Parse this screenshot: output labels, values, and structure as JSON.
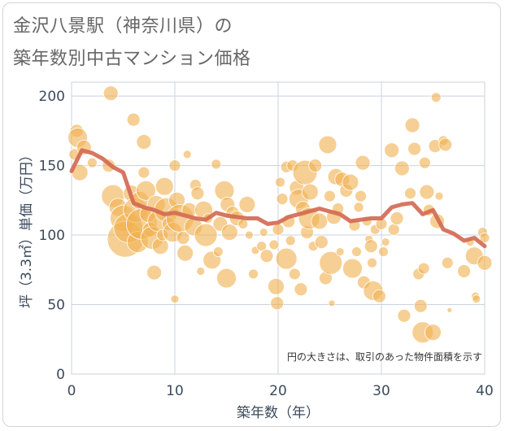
{
  "chart_title": {
    "line1": "金沢八景駅（神奈川県）の",
    "line2": "築年数別中古マンション価格"
  },
  "note": "円の大きさは、取引のあった物件面積を示す",
  "colors": {
    "bubble": "#f0b253",
    "line": "#d46a55",
    "grid": "#c9d3de",
    "axis_text": "#3b4a5c"
  },
  "chart_data": {
    "type": "scatter",
    "xlabel": "築年数（年）",
    "ylabel": "坪（3.3㎡）単価（万円）",
    "xlim": [
      0,
      40
    ],
    "ylim": [
      0,
      210
    ],
    "xticks": [
      0,
      10,
      20,
      30,
      40
    ],
    "yticks": [
      0,
      50,
      100,
      150,
      200
    ],
    "grid": true,
    "line": {
      "x": [
        0,
        1,
        2,
        3,
        4,
        5,
        6,
        7,
        8,
        9,
        10,
        11,
        12,
        13,
        14,
        15,
        16,
        17,
        18,
        19,
        20,
        21,
        22,
        23,
        24,
        25,
        26,
        27,
        28,
        29,
        30,
        31,
        32,
        33,
        34,
        35,
        36,
        37,
        38,
        39,
        40
      ],
      "y": [
        146,
        161,
        159,
        155,
        149,
        145,
        123,
        120,
        118,
        115,
        116,
        114,
        112,
        111,
        116,
        114,
        113,
        112,
        112,
        108,
        109,
        113,
        115,
        117,
        119,
        117,
        115,
        110,
        111,
        112,
        112,
        120,
        122,
        123,
        115,
        118,
        104,
        101,
        96,
        98,
        92
      ]
    },
    "bubbles": [
      {
        "x": 0.5,
        "y": 175,
        "s": 8
      },
      {
        "x": 0.6,
        "y": 170,
        "s": 12
      },
      {
        "x": 0.8,
        "y": 145,
        "s": 10
      },
      {
        "x": 0.3,
        "y": 158,
        "s": 7
      },
      {
        "x": 1.2,
        "y": 163,
        "s": 9
      },
      {
        "x": 2.0,
        "y": 152,
        "s": 6
      },
      {
        "x": 3.8,
        "y": 202,
        "s": 9
      },
      {
        "x": 3.6,
        "y": 150,
        "s": 8
      },
      {
        "x": 4.0,
        "y": 128,
        "s": 14
      },
      {
        "x": 4.5,
        "y": 120,
        "s": 11
      },
      {
        "x": 5.0,
        "y": 112,
        "s": 16
      },
      {
        "x": 5.2,
        "y": 97,
        "s": 22
      },
      {
        "x": 5.5,
        "y": 105,
        "s": 18
      },
      {
        "x": 5.8,
        "y": 130,
        "s": 10
      },
      {
        "x": 6.0,
        "y": 183,
        "s": 8
      },
      {
        "x": 6.2,
        "y": 118,
        "s": 15
      },
      {
        "x": 6.4,
        "y": 95,
        "s": 13
      },
      {
        "x": 6.6,
        "y": 125,
        "s": 11
      },
      {
        "x": 6.8,
        "y": 108,
        "s": 19
      },
      {
        "x": 7.0,
        "y": 167,
        "s": 9
      },
      {
        "x": 7.0,
        "y": 145,
        "s": 7
      },
      {
        "x": 7.2,
        "y": 132,
        "s": 12
      },
      {
        "x": 7.4,
        "y": 115,
        "s": 10
      },
      {
        "x": 7.6,
        "y": 104,
        "s": 9
      },
      {
        "x": 7.8,
        "y": 98,
        "s": 14
      },
      {
        "x": 8.0,
        "y": 73,
        "s": 9
      },
      {
        "x": 8.2,
        "y": 122,
        "s": 11
      },
      {
        "x": 8.4,
        "y": 110,
        "s": 13
      },
      {
        "x": 8.6,
        "y": 92,
        "s": 10
      },
      {
        "x": 8.8,
        "y": 100,
        "s": 7
      },
      {
        "x": 9.0,
        "y": 135,
        "s": 11
      },
      {
        "x": 9.2,
        "y": 118,
        "s": 15
      },
      {
        "x": 9.4,
        "y": 108,
        "s": 8
      },
      {
        "x": 9.8,
        "y": 102,
        "s": 12
      },
      {
        "x": 10.0,
        "y": 150,
        "s": 7
      },
      {
        "x": 10.0,
        "y": 54,
        "s": 5
      },
      {
        "x": 10.2,
        "y": 125,
        "s": 10
      },
      {
        "x": 10.5,
        "y": 112,
        "s": 17
      },
      {
        "x": 10.8,
        "y": 98,
        "s": 8
      },
      {
        "x": 11.0,
        "y": 87,
        "s": 10
      },
      {
        "x": 11.2,
        "y": 158,
        "s": 5
      },
      {
        "x": 11.4,
        "y": 118,
        "s": 9
      },
      {
        "x": 11.8,
        "y": 106,
        "s": 11
      },
      {
        "x": 12.0,
        "y": 136,
        "s": 7
      },
      {
        "x": 12.2,
        "y": 130,
        "s": 8
      },
      {
        "x": 12.5,
        "y": 74,
        "s": 5
      },
      {
        "x": 12.8,
        "y": 118,
        "s": 11
      },
      {
        "x": 13.0,
        "y": 100,
        "s": 14
      },
      {
        "x": 13.2,
        "y": 112,
        "s": 6
      },
      {
        "x": 13.6,
        "y": 82,
        "s": 11
      },
      {
        "x": 14.0,
        "y": 151,
        "s": 6
      },
      {
        "x": 14.2,
        "y": 88,
        "s": 6
      },
      {
        "x": 14.4,
        "y": 108,
        "s": 9
      },
      {
        "x": 14.8,
        "y": 132,
        "s": 12
      },
      {
        "x": 15.0,
        "y": 69,
        "s": 12
      },
      {
        "x": 15.1,
        "y": 122,
        "s": 9
      },
      {
        "x": 15.3,
        "y": 102,
        "s": 10
      },
      {
        "x": 15.6,
        "y": 116,
        "s": 8
      },
      {
        "x": 16.0,
        "y": 112,
        "s": 9
      },
      {
        "x": 16.6,
        "y": 108,
        "s": 6
      },
      {
        "x": 17.0,
        "y": 122,
        "s": 10
      },
      {
        "x": 17.2,
        "y": 100,
        "s": 5
      },
      {
        "x": 17.6,
        "y": 72,
        "s": 6
      },
      {
        "x": 17.8,
        "y": 89,
        "s": 5
      },
      {
        "x": 18.4,
        "y": 92,
        "s": 6
      },
      {
        "x": 18.6,
        "y": 102,
        "s": 5
      },
      {
        "x": 18.9,
        "y": 85,
        "s": 8
      },
      {
        "x": 19.6,
        "y": 93,
        "s": 6
      },
      {
        "x": 19.8,
        "y": 63,
        "s": 10
      },
      {
        "x": 19.9,
        "y": 51,
        "s": 8
      },
      {
        "x": 20.0,
        "y": 104,
        "s": 7
      },
      {
        "x": 20.2,
        "y": 138,
        "s": 6
      },
      {
        "x": 20.4,
        "y": 126,
        "s": 7
      },
      {
        "x": 20.8,
        "y": 149,
        "s": 7
      },
      {
        "x": 20.8,
        "y": 83,
        "s": 13
      },
      {
        "x": 21.0,
        "y": 110,
        "s": 8
      },
      {
        "x": 21.2,
        "y": 96,
        "s": 6
      },
      {
        "x": 21.4,
        "y": 150,
        "s": 7
      },
      {
        "x": 21.6,
        "y": 72,
        "s": 7
      },
      {
        "x": 21.8,
        "y": 134,
        "s": 9
      },
      {
        "x": 22.0,
        "y": 126,
        "s": 12
      },
      {
        "x": 22.2,
        "y": 61,
        "s": 8
      },
      {
        "x": 22.4,
        "y": 119,
        "s": 9
      },
      {
        "x": 22.6,
        "y": 145,
        "s": 15
      },
      {
        "x": 22.8,
        "y": 102,
        "s": 8
      },
      {
        "x": 23.0,
        "y": 112,
        "s": 13
      },
      {
        "x": 23.1,
        "y": 131,
        "s": 10
      },
      {
        "x": 23.4,
        "y": 92,
        "s": 6
      },
      {
        "x": 23.6,
        "y": 150,
        "s": 8
      },
      {
        "x": 24.0,
        "y": 110,
        "s": 10
      },
      {
        "x": 24.2,
        "y": 95,
        "s": 8
      },
      {
        "x": 24.6,
        "y": 69,
        "s": 8
      },
      {
        "x": 24.8,
        "y": 165,
        "s": 11
      },
      {
        "x": 25.0,
        "y": 128,
        "s": 7
      },
      {
        "x": 25.1,
        "y": 80,
        "s": 14
      },
      {
        "x": 25.2,
        "y": 51,
        "s": 4
      },
      {
        "x": 25.4,
        "y": 113,
        "s": 9
      },
      {
        "x": 25.6,
        "y": 142,
        "s": 10
      },
      {
        "x": 25.8,
        "y": 119,
        "s": 7
      },
      {
        "x": 26.0,
        "y": 88,
        "s": 5
      },
      {
        "x": 26.2,
        "y": 140,
        "s": 9
      },
      {
        "x": 26.6,
        "y": 132,
        "s": 8
      },
      {
        "x": 27.0,
        "y": 138,
        "s": 10
      },
      {
        "x": 27.2,
        "y": 76,
        "s": 12
      },
      {
        "x": 27.4,
        "y": 107,
        "s": 7
      },
      {
        "x": 27.6,
        "y": 88,
        "s": 6
      },
      {
        "x": 27.8,
        "y": 120,
        "s": 6
      },
      {
        "x": 28.0,
        "y": 128,
        "s": 7
      },
      {
        "x": 28.2,
        "y": 152,
        "s": 9
      },
      {
        "x": 28.3,
        "y": 66,
        "s": 8
      },
      {
        "x": 28.6,
        "y": 110,
        "s": 6
      },
      {
        "x": 28.8,
        "y": 97,
        "s": 5
      },
      {
        "x": 29.0,
        "y": 92,
        "s": 8
      },
      {
        "x": 29.1,
        "y": 80,
        "s": 6
      },
      {
        "x": 29.2,
        "y": 60,
        "s": 12
      },
      {
        "x": 29.4,
        "y": 104,
        "s": 6
      },
      {
        "x": 29.8,
        "y": 56,
        "s": 8
      },
      {
        "x": 30.0,
        "y": 108,
        "s": 7
      },
      {
        "x": 30.2,
        "y": 88,
        "s": 6
      },
      {
        "x": 30.4,
        "y": 95,
        "s": 5
      },
      {
        "x": 31.0,
        "y": 161,
        "s": 9
      },
      {
        "x": 31.2,
        "y": 104,
        "s": 7
      },
      {
        "x": 31.5,
        "y": 112,
        "s": 8
      },
      {
        "x": 32.0,
        "y": 148,
        "s": 9
      },
      {
        "x": 32.2,
        "y": 42,
        "s": 8
      },
      {
        "x": 32.8,
        "y": 130,
        "s": 7
      },
      {
        "x": 33.0,
        "y": 179,
        "s": 9
      },
      {
        "x": 33.2,
        "y": 162,
        "s": 8
      },
      {
        "x": 33.6,
        "y": 72,
        "s": 7
      },
      {
        "x": 33.8,
        "y": 49,
        "s": 8
      },
      {
        "x": 34.0,
        "y": 30,
        "s": 13
      },
      {
        "x": 34.1,
        "y": 76,
        "s": 7
      },
      {
        "x": 34.2,
        "y": 152,
        "s": 7
      },
      {
        "x": 34.4,
        "y": 131,
        "s": 9
      },
      {
        "x": 34.6,
        "y": 118,
        "s": 7
      },
      {
        "x": 35.0,
        "y": 30,
        "s": 10
      },
      {
        "x": 35.2,
        "y": 164,
        "s": 8
      },
      {
        "x": 35.3,
        "y": 199,
        "s": 6
      },
      {
        "x": 35.4,
        "y": 110,
        "s": 9
      },
      {
        "x": 35.6,
        "y": 128,
        "s": 5
      },
      {
        "x": 36.0,
        "y": 168,
        "s": 6
      },
      {
        "x": 36.2,
        "y": 165,
        "s": 8
      },
      {
        "x": 36.4,
        "y": 80,
        "s": 7
      },
      {
        "x": 36.6,
        "y": 46,
        "s": 3
      },
      {
        "x": 38.0,
        "y": 74,
        "s": 8
      },
      {
        "x": 38.6,
        "y": 95,
        "s": 5
      },
      {
        "x": 39.0,
        "y": 85,
        "s": 11
      },
      {
        "x": 39.1,
        "y": 56,
        "s": 5
      },
      {
        "x": 39.2,
        "y": 54,
        "s": 5
      },
      {
        "x": 39.8,
        "y": 102,
        "s": 6
      },
      {
        "x": 40.0,
        "y": 80,
        "s": 9
      },
      {
        "x": 40.0,
        "y": 98,
        "s": 6
      }
    ]
  }
}
